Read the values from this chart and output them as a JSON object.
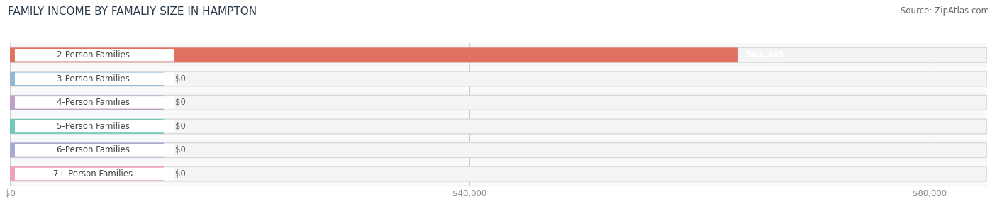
{
  "title": "FAMILY INCOME BY FAMALIY SIZE IN HAMPTON",
  "source": "Source: ZipAtlas.com",
  "categories": [
    "2-Person Families",
    "3-Person Families",
    "4-Person Families",
    "5-Person Families",
    "6-Person Families",
    "7+ Person Families"
  ],
  "values": [
    63345,
    0,
    0,
    0,
    0,
    0
  ],
  "bar_colors": [
    "#e07060",
    "#8fb8d8",
    "#c0a0c8",
    "#70c8b8",
    "#a8a8d8",
    "#f0a0b8"
  ],
  "value_labels": [
    "$63,345",
    "$0",
    "$0",
    "$0",
    "$0",
    "$0"
  ],
  "xlim": [
    0,
    85000
  ],
  "xticks": [
    0,
    40000,
    80000
  ],
  "xticklabels": [
    "$0",
    "$40,000",
    "$80,000"
  ],
  "bar_height": 0.62,
  "title_fontsize": 11,
  "source_fontsize": 8.5,
  "label_fontsize": 8.5,
  "value_fontsize": 8.5,
  "background_color": "#ffffff",
  "grid_color": "#cccccc",
  "label_bg_color": "#ffffff",
  "label_text_color": "#444444",
  "zero_value_color": "#666666"
}
